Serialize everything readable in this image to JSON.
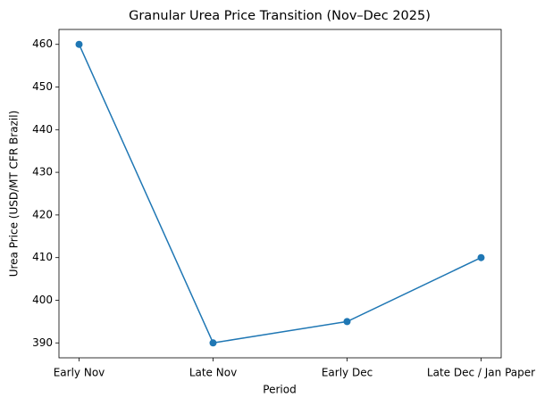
{
  "chart_data": {
    "type": "line",
    "title": "Granular Urea Price Transition (Nov–Dec 2025)",
    "x_label": "Period",
    "y_label": "Urea Price (USD/MT CFR Brazil)",
    "categories": [
      "Early Nov",
      "Late Nov",
      "Early Dec",
      "Late Dec / Jan Paper"
    ],
    "values": [
      460,
      390,
      395,
      410
    ],
    "color": "#1f77b4",
    "ylim": [
      386.5,
      463.5
    ],
    "yticks": [
      390,
      400,
      410,
      420,
      430,
      440,
      450,
      460
    ],
    "grid": false
  }
}
